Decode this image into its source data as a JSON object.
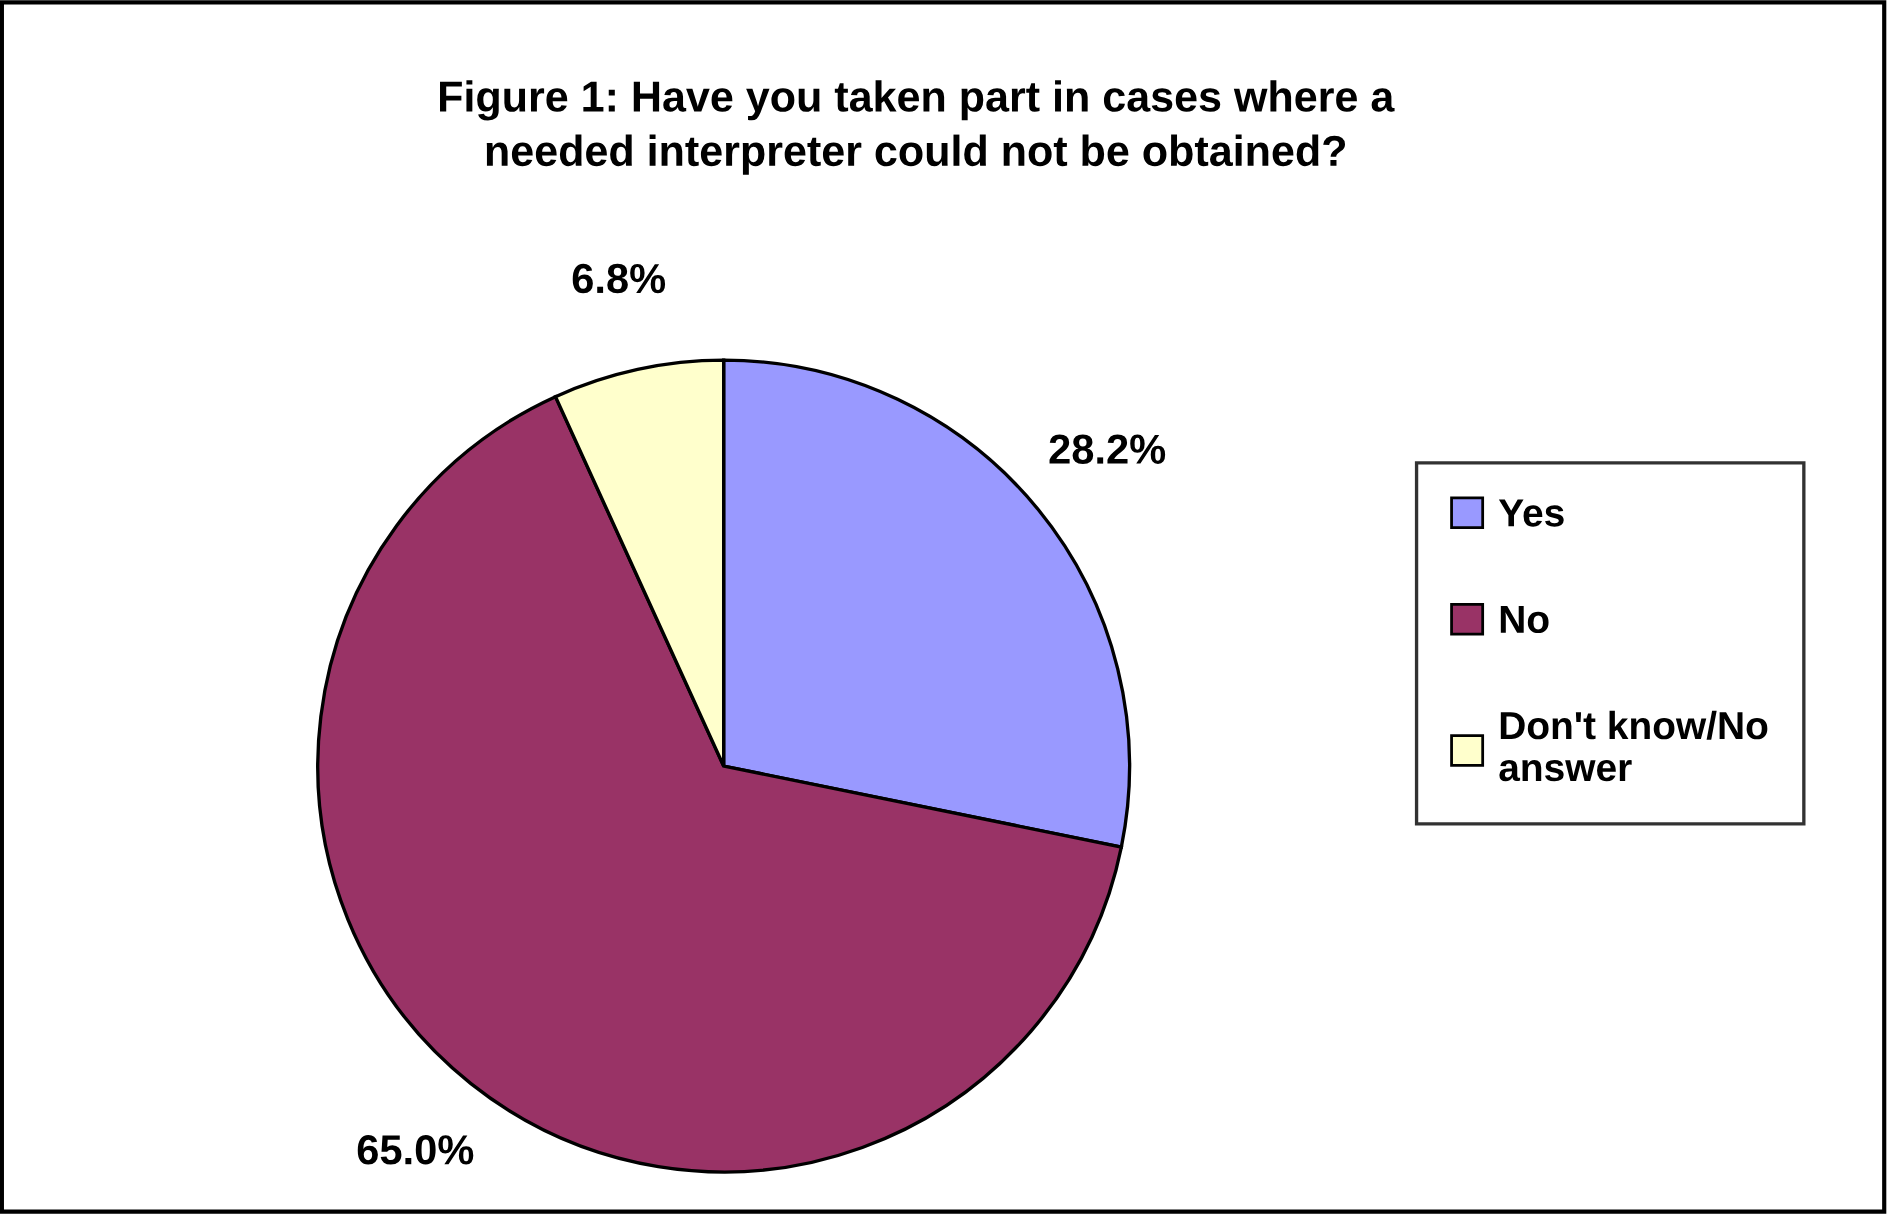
{
  "chart_data": {
    "type": "pie",
    "title": "Figure 1: Have you taken part in cases where a\nneeded interpreter could not be obtained?",
    "categories": [
      "Yes",
      "No",
      "Don't know/No\nanswer"
    ],
    "values": [
      28.2,
      65.0,
      6.8
    ],
    "colors": [
      "#9999ff",
      "#993366",
      "#ffffcc"
    ],
    "value_labels": [
      "28.2%",
      "65.0%",
      "6.8%"
    ],
    "legend": "right"
  }
}
